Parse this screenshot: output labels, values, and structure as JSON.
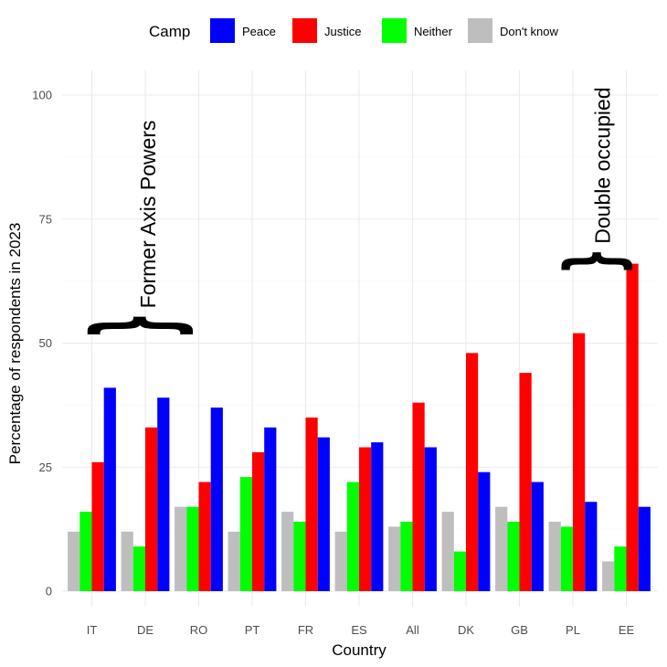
{
  "chart_data": {
    "type": "bar",
    "xlabel": "Country",
    "ylabel": "Percentage of respondents in 2023",
    "ylim": [
      0,
      100
    ],
    "yticks": [
      0,
      25,
      50,
      75,
      100
    ],
    "grid": true,
    "legend": {
      "title": "Camp",
      "placement": "top",
      "entries": [
        "Peace",
        "Justice",
        "Neither",
        "Don't know"
      ]
    },
    "categories": [
      "IT",
      "DE",
      "RO",
      "PT",
      "FR",
      "ES",
      "All",
      "DK",
      "GB",
      "PL",
      "EE"
    ],
    "series": [
      {
        "name": "Don't know",
        "color": "#bebebe",
        "values": [
          12,
          12,
          17,
          12,
          16,
          12,
          13,
          16,
          17,
          14,
          6
        ]
      },
      {
        "name": "Neither",
        "color": "#00ff00",
        "values": [
          16,
          9,
          17,
          23,
          14,
          22,
          14,
          8,
          14,
          13,
          9
        ]
      },
      {
        "name": "Justice",
        "color": "#ff0000",
        "values": [
          26,
          33,
          22,
          28,
          35,
          29,
          38,
          48,
          44,
          52,
          66
        ]
      },
      {
        "name": "Peace",
        "color": "#0000ff",
        "values": [
          41,
          39,
          37,
          33,
          31,
          30,
          29,
          24,
          22,
          18,
          17
        ]
      }
    ],
    "annotations": [
      {
        "text": "Former Axis Powers",
        "from": "IT",
        "to": "RO",
        "y": 55
      },
      {
        "text": "Double occupied",
        "from": "PL",
        "to": "EE",
        "y": 68
      }
    ]
  }
}
